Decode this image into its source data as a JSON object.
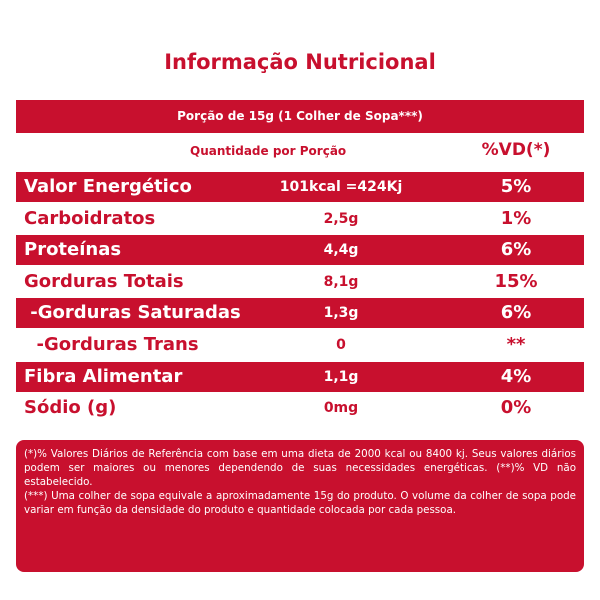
{
  "header": {
    "title": "Informação Nutricional",
    "portion": "Porção de 15g (1 Colher de Sopa***)"
  },
  "table": {
    "columns": [
      "Quantidade por Porção",
      "%VD(*)"
    ],
    "rows": [
      [
        "Valor Energético",
        "101kcal =424Kj",
        "5%"
      ],
      [
        "Carboidratos",
        "2,5g",
        "1%"
      ],
      [
        "Proteínas",
        "4,4g",
        "6%"
      ],
      [
        "Gorduras Totais",
        "8,1g",
        "15%"
      ],
      [
        " -Gorduras Saturadas",
        "1,3g",
        "6%"
      ],
      [
        "  -Gorduras Trans",
        "0",
        "**"
      ],
      [
        "Fibra Alimentar",
        "1,1g",
        "4%"
      ],
      [
        "Sódio (g)",
        "0mg",
        "0%"
      ]
    ]
  },
  "footnotes": [
    "(*)% Valores Diários de Referência com base em uma dieta de 2000 kcal ou 8400 kj. Seus valores diários podem ser maiores ou menores dependendo de suas necessidades energéticas. (**)% VD não estabelecido.",
    "(***) Uma colher de sopa equivale a aproximadamente 15g do produto. O volume da colher de sopa pode variar em função da densidade do produto e quantidade colocada por cada pessoa."
  ]
}
